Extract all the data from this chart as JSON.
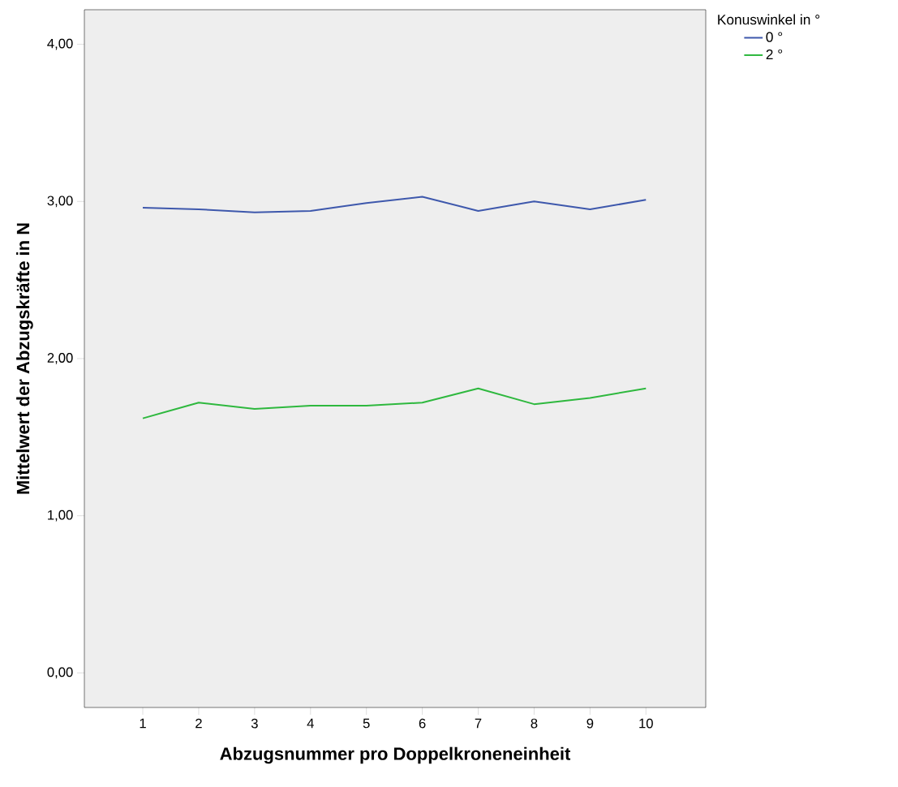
{
  "chart_data": {
    "type": "line",
    "xlabel": "Abzugsnummer pro Doppelkroneneinheit",
    "ylabel": "Mittelwert der Abzugskräfte in N",
    "legend_title": "Konuswinkel in °",
    "legend": "top right",
    "categories": [
      "1",
      "2",
      "3",
      "4",
      "5",
      "6",
      "7",
      "8",
      "9",
      "10"
    ],
    "series": [
      {
        "name": "0 °",
        "color": "#3e58ac",
        "values": [
          2.96,
          2.95,
          2.93,
          2.94,
          2.99,
          3.03,
          2.94,
          3.0,
          2.95,
          3.01
        ]
      },
      {
        "name": "2 °",
        "color": "#2eb83e",
        "values": [
          1.62,
          1.72,
          1.68,
          1.7,
          1.7,
          1.72,
          1.81,
          1.71,
          1.75,
          1.81
        ]
      }
    ],
    "ylim": [
      -0.22,
      4.22
    ],
    "yticks": [
      {
        "value": 0,
        "label": "0,00"
      },
      {
        "value": 1,
        "label": "1,00"
      },
      {
        "value": 2,
        "label": "2,00"
      },
      {
        "value": 3,
        "label": "3,00"
      },
      {
        "value": 4,
        "label": "4,00"
      }
    ],
    "grid": false,
    "marker": "none",
    "line_style": "solid"
  }
}
